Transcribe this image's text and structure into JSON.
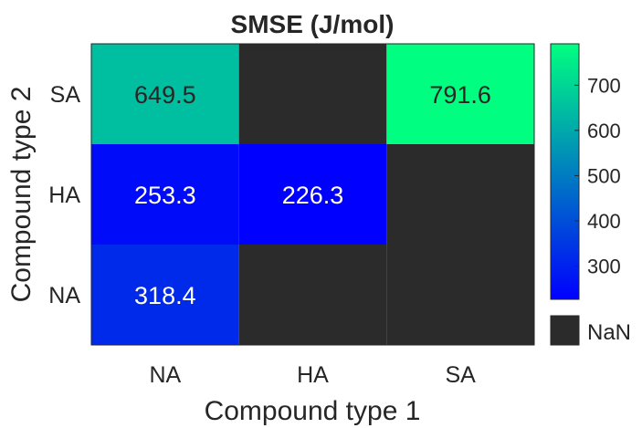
{
  "chart_data": {
    "type": "heatmap",
    "title": "SMSE (J/mol)",
    "xlabel": "Compound type 1",
    "ylabel": "Compound type 2",
    "x_categories": [
      "NA",
      "HA",
      "SA"
    ],
    "y_categories": [
      "SA",
      "HA",
      "NA"
    ],
    "values": [
      [
        649.5,
        null,
        791.6
      ],
      [
        253.3,
        226.3,
        null
      ],
      [
        318.4,
        null,
        null
      ]
    ],
    "value_labels": [
      [
        "649.5",
        "",
        "791.6"
      ],
      [
        "253.3",
        "226.3",
        ""
      ],
      [
        "318.4",
        "",
        ""
      ]
    ],
    "colorbar": {
      "min": 226.3,
      "max": 791.6,
      "ticks": [
        300,
        400,
        500,
        600,
        700
      ],
      "tick_labels": [
        "300",
        "400",
        "500",
        "600",
        "700"
      ],
      "color_low": "#0000ff",
      "color_high": "#00ff80"
    },
    "nan_color": "#2b2b2b",
    "nan_label": "NaN"
  }
}
